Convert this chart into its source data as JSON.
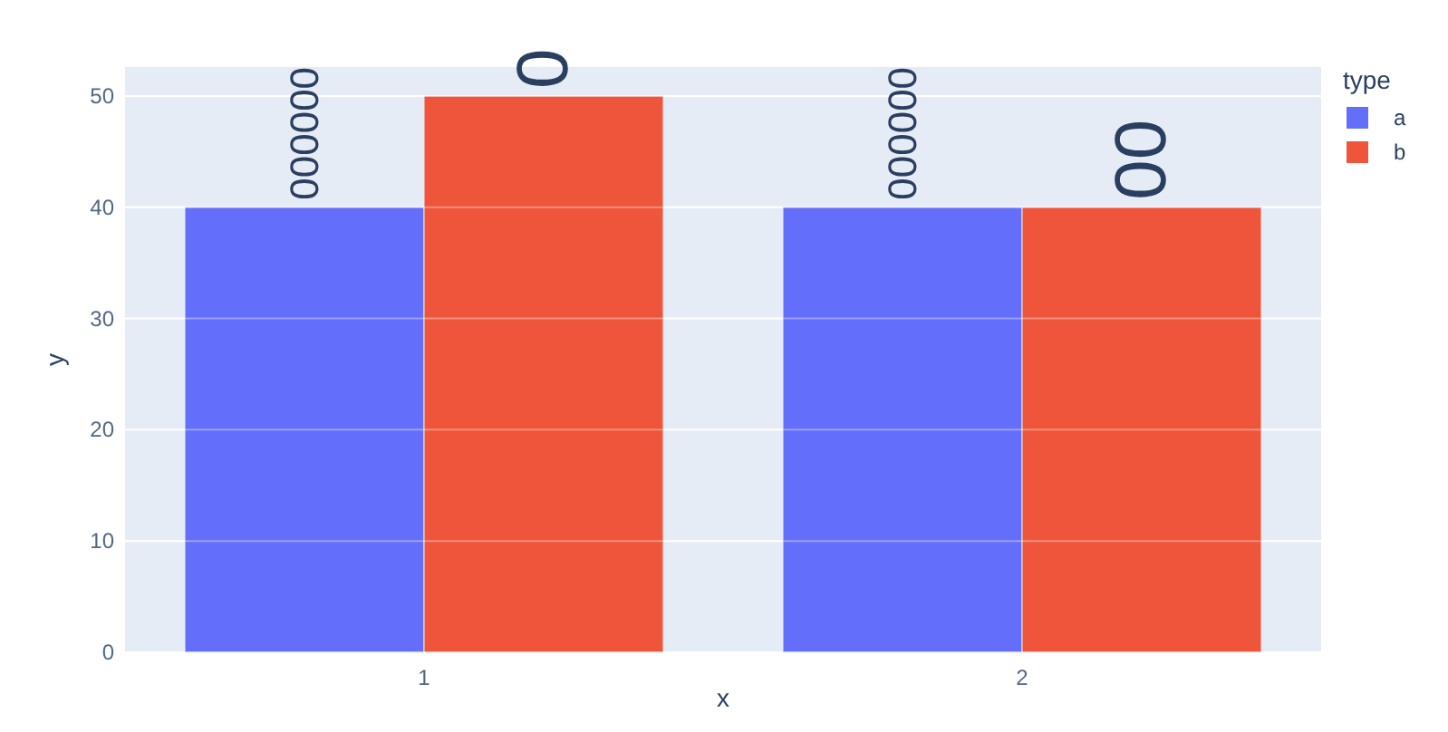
{
  "chart_data": {
    "type": "bar",
    "categories": [
      "1",
      "2"
    ],
    "xlabel": "x",
    "ylabel": "y",
    "legend_title": "type",
    "legend": "right",
    "grid": "y",
    "ylim": [
      0,
      52.6
    ],
    "yticks": [
      0,
      10,
      20,
      30,
      40,
      50
    ],
    "series": [
      {
        "name": "a",
        "color": "#636efa",
        "values": [
          40,
          40
        ]
      },
      {
        "name": "b",
        "color": "#ef553b",
        "values": [
          50,
          40
        ]
      }
    ],
    "annotations": [
      {
        "text": "000000",
        "x": "1",
        "y": 40
      },
      {
        "text": "0",
        "x": "1",
        "y": 50
      },
      {
        "text": "000000",
        "x": "2",
        "y": 40
      },
      {
        "text": "00",
        "x": "2",
        "y": 40
      }
    ]
  }
}
